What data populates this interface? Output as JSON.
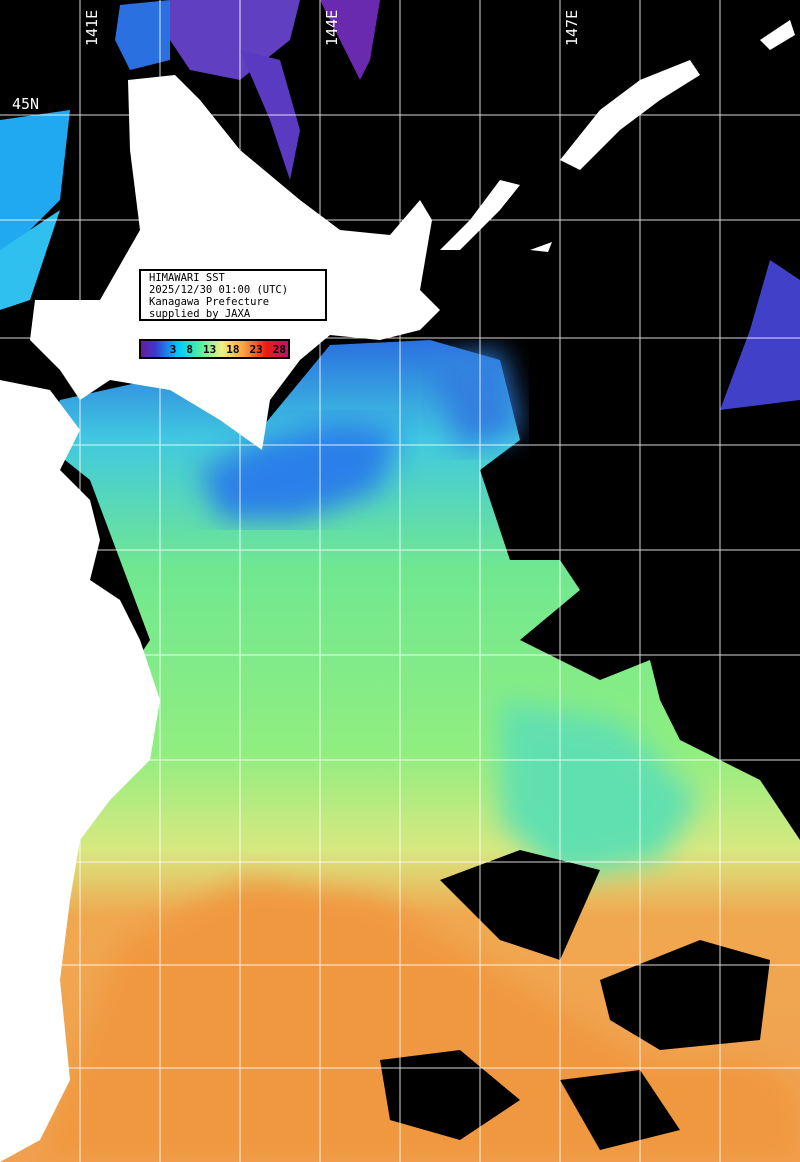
{
  "map": {
    "title": "HIMAWARI SST",
    "datetime": "2025/12/30 01:00 (UTC)",
    "region": "Kanagawa Prefecture",
    "credit": "supplied by JAXA",
    "legend": {
      "ticks": [
        "3",
        "8",
        "13",
        "18",
        "23",
        "28"
      ],
      "colors": [
        "#6a1a9a",
        "#3a3ad0",
        "#00c8ff",
        "#50f0a0",
        "#f0f080",
        "#ffa040",
        "#e82010",
        "#c0106a"
      ]
    },
    "longitude_labels": [
      "141E",
      "144E",
      "147E"
    ],
    "latitude_labels": [
      "45N"
    ],
    "land_color": "#ffffff",
    "no_data_color": "#000000",
    "grid_color": "#ffffff"
  }
}
